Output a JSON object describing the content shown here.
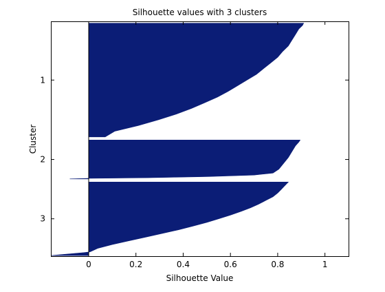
{
  "chart_data": {
    "type": "bar",
    "orientation": "horizontal",
    "title": "Silhouette values with 3 clusters",
    "xlabel": "Silhouette Value",
    "ylabel": "Cluster",
    "xlim": [
      -0.16,
      1.1
    ],
    "xticks": [
      0,
      0.2,
      0.4,
      0.6,
      0.8,
      1
    ],
    "xtick_labels": [
      "0",
      "0.2",
      "0.4",
      "0.6",
      "0.8",
      "1"
    ],
    "cluster_labels": [
      "1",
      "2",
      "3"
    ],
    "ylim": [
      0,
      38
    ],
    "bar_color": "#0b1d76",
    "grid": false,
    "clusters": [
      {
        "label": "1",
        "start": 0.3,
        "end": 18.7,
        "profile": [
          [
            0.0,
            0.91
          ],
          [
            0.02,
            0.905
          ],
          [
            0.05,
            0.89
          ],
          [
            0.1,
            0.875
          ],
          [
            0.15,
            0.86
          ],
          [
            0.2,
            0.845
          ],
          [
            0.25,
            0.82
          ],
          [
            0.3,
            0.8
          ],
          [
            0.35,
            0.77
          ],
          [
            0.4,
            0.74
          ],
          [
            0.45,
            0.71
          ],
          [
            0.5,
            0.67
          ],
          [
            0.55,
            0.63
          ],
          [
            0.6,
            0.59
          ],
          [
            0.65,
            0.545
          ],
          [
            0.7,
            0.49
          ],
          [
            0.75,
            0.435
          ],
          [
            0.8,
            0.37
          ],
          [
            0.85,
            0.295
          ],
          [
            0.9,
            0.21
          ],
          [
            0.95,
            0.11
          ],
          [
            1.0,
            0.07
          ]
        ]
      },
      {
        "label": "2",
        "start": 19.2,
        "end": 25.5,
        "profile": [
          [
            0.0,
            0.895
          ],
          [
            0.05,
            0.89
          ],
          [
            0.15,
            0.875
          ],
          [
            0.3,
            0.86
          ],
          [
            0.45,
            0.845
          ],
          [
            0.6,
            0.825
          ],
          [
            0.75,
            0.805
          ],
          [
            0.85,
            0.78
          ],
          [
            0.9,
            0.7
          ],
          [
            0.94,
            0.5
          ],
          [
            0.97,
            0.25
          ],
          [
            0.985,
            0.0
          ],
          [
            1.0,
            -0.08
          ]
        ]
      },
      {
        "label": "3",
        "start": 26.0,
        "end": 37.9,
        "profile": [
          [
            0.0,
            0.845
          ],
          [
            0.05,
            0.83
          ],
          [
            0.1,
            0.815
          ],
          [
            0.15,
            0.8
          ],
          [
            0.2,
            0.78
          ],
          [
            0.25,
            0.75
          ],
          [
            0.3,
            0.72
          ],
          [
            0.35,
            0.685
          ],
          [
            0.4,
            0.645
          ],
          [
            0.45,
            0.6
          ],
          [
            0.5,
            0.55
          ],
          [
            0.55,
            0.5
          ],
          [
            0.6,
            0.44
          ],
          [
            0.65,
            0.38
          ],
          [
            0.7,
            0.31
          ],
          [
            0.75,
            0.24
          ],
          [
            0.8,
            0.17
          ],
          [
            0.85,
            0.1
          ],
          [
            0.9,
            0.04
          ],
          [
            0.95,
            0.005
          ],
          [
            0.96,
            -0.02
          ],
          [
            1.0,
            -0.16
          ]
        ]
      }
    ]
  }
}
